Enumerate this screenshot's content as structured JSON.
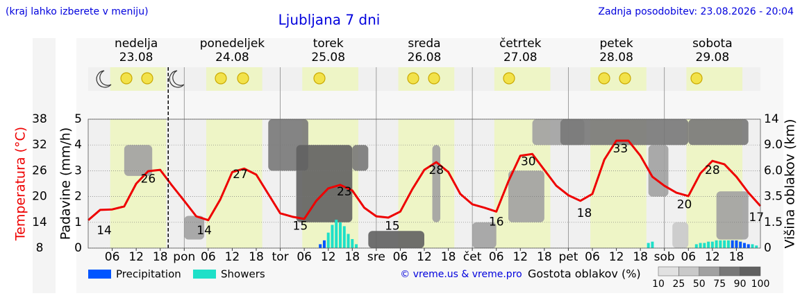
{
  "header": {
    "note": "(kraj lahko izberete v meniju)",
    "updated": "Zadnja posodobitev: 23.08.2026 - 20:04"
  },
  "chart_data": {
    "type": "meteogram",
    "title": "Ljubljana 7 dni",
    "days": [
      {
        "name": "nedelja",
        "date": "23.08",
        "weekend": true
      },
      {
        "name": "ponedeljek",
        "date": "24.08",
        "weekend": false
      },
      {
        "name": "torek",
        "date": "25.08",
        "weekend": false
      },
      {
        "name": "sreda",
        "date": "26.08",
        "weekend": false
      },
      {
        "name": "četrtek",
        "date": "27.08",
        "weekend": false
      },
      {
        "name": "petek",
        "date": "28.08",
        "weekend": false
      },
      {
        "name": "sobota",
        "date": "29.08",
        "weekend": true
      }
    ],
    "daylight": [
      5.5,
      19.5
    ],
    "now": 20,
    "xlim": [
      0,
      168
    ],
    "xticks": [
      {
        "value": 6,
        "label": "06"
      },
      {
        "value": 12,
        "label": "12"
      },
      {
        "value": 18,
        "label": "18"
      },
      {
        "value": 24,
        "label": "pon"
      },
      {
        "value": 30,
        "label": "06"
      },
      {
        "value": 36,
        "label": "12"
      },
      {
        "value": 42,
        "label": "18"
      },
      {
        "value": 48,
        "label": "tor"
      },
      {
        "value": 54,
        "label": "06"
      },
      {
        "value": 60,
        "label": "12"
      },
      {
        "value": 66,
        "label": "18"
      },
      {
        "value": 72,
        "label": "sre"
      },
      {
        "value": 78,
        "label": "06"
      },
      {
        "value": 84,
        "label": "12"
      },
      {
        "value": 90,
        "label": "18"
      },
      {
        "value": 96,
        "label": "čet"
      },
      {
        "value": 102,
        "label": "06"
      },
      {
        "value": 108,
        "label": "12"
      },
      {
        "value": 114,
        "label": "18"
      },
      {
        "value": 120,
        "label": "pet"
      },
      {
        "value": 126,
        "label": "06"
      },
      {
        "value": 132,
        "label": "12"
      },
      {
        "value": 138,
        "label": "18"
      },
      {
        "value": 144,
        "label": "sob"
      },
      {
        "value": 150,
        "label": "06"
      },
      {
        "value": 156,
        "label": "12"
      },
      {
        "value": 162,
        "label": "18"
      }
    ],
    "ylabel": "Padavine (mm/h)",
    "ylim": [
      0,
      5
    ],
    "yticks": [
      0,
      1,
      2,
      3,
      4,
      5
    ],
    "grid": true,
    "y2label": "Višina oblakov (km)",
    "y2ticks": [
      0,
      1.5,
      3.5,
      {
        "value": 6,
        "label": "6.0"
      },
      {
        "value": 9,
        "label": "9.0"
      },
      14
    ],
    "temperature": {
      "label": "Temperatura (°C)",
      "color": "#ee0000",
      "ylim": [
        8,
        38
      ],
      "yticks": [
        8,
        14,
        20,
        26,
        32,
        38
      ],
      "x": [
        0,
        3,
        6,
        9,
        12,
        15,
        18,
        21,
        24,
        27,
        30,
        33,
        36,
        39,
        42,
        45,
        48,
        51,
        54,
        57,
        60,
        63,
        66,
        69,
        72,
        75,
        78,
        81,
        84,
        87,
        90,
        93,
        96,
        99,
        102,
        105,
        108,
        111,
        114,
        117,
        120,
        123,
        126,
        129,
        132,
        135,
        138,
        141,
        144,
        147,
        150,
        153,
        156,
        159,
        162,
        165,
        168
      ],
      "values": [
        14.5,
        16.9,
        17.0,
        17.7,
        23.0,
        25.9,
        26.2,
        22.5,
        19.0,
        15.4,
        14.5,
        19.3,
        25.7,
        26.5,
        25.1,
        20.6,
        16.1,
        15.3,
        14.8,
        19.0,
        21.9,
        22.7,
        21.4,
        17.4,
        15.4,
        15.1,
        16.5,
        21.7,
        26.2,
        28.0,
        25.7,
        20.6,
        18.2,
        17.4,
        16.5,
        23.5,
        29.5,
        29.9,
        26.2,
        22.5,
        20.3,
        19.0,
        20.6,
        28.6,
        33.0,
        33.0,
        29.5,
        24.6,
        22.5,
        20.9,
        20.1,
        25.4,
        28.3,
        27.5,
        24.6,
        20.9,
        17.8
      ],
      "labels": {
        "x": [
          4,
          15,
          29,
          38,
          53,
          64,
          76,
          87,
          102,
          110,
          124,
          133,
          149,
          156,
          167
        ],
        "values": [
          14,
          26,
          14,
          27,
          15,
          23,
          15,
          28,
          16,
          30,
          18,
          33,
          20,
          28,
          17
        ]
      }
    },
    "series": [
      {
        "name": "Precipitation",
        "color": "#0055ff",
        "x": [
          58,
          59,
          161,
          162,
          163,
          164,
          165
        ],
        "values": [
          0.15,
          0.3,
          0.3,
          0.3,
          0.25,
          0.2,
          0.15
        ]
      },
      {
        "name": "Showers",
        "color": "#1ee0c8",
        "x": [
          60,
          61,
          62,
          63,
          64,
          65,
          66,
          67,
          140,
          141,
          152,
          153,
          154,
          155,
          156,
          157,
          158,
          159,
          160,
          166,
          167
        ],
        "values": [
          0.6,
          0.9,
          1.1,
          1.0,
          0.85,
          0.55,
          0.35,
          0.15,
          0.2,
          0.25,
          0.15,
          0.2,
          0.2,
          0.25,
          0.25,
          0.3,
          0.3,
          0.3,
          0.3,
          0.15,
          0.1
        ]
      }
    ],
    "clouds": {
      "label": "Gostota oblakov (%)",
      "scale": [
        10,
        25,
        50,
        75,
        90,
        100
      ],
      "blobs": [
        {
          "x": [
            9,
            16
          ],
          "height": [
            5.5,
            9
          ],
          "density": 50
        },
        {
          "x": [
            24,
            29
          ],
          "height": [
            0.5,
            2
          ],
          "density": 50
        },
        {
          "x": [
            45,
            55
          ],
          "height": [
            6,
            14
          ],
          "density": 75
        },
        {
          "x": [
            52,
            66
          ],
          "height": [
            1.5,
            9
          ],
          "density": 90
        },
        {
          "x": [
            66,
            70
          ],
          "height": [
            6,
            9
          ],
          "density": 75
        },
        {
          "x": [
            70,
            84
          ],
          "height": [
            0,
            1
          ],
          "density": 90
        },
        {
          "x": [
            86,
            88
          ],
          "height": [
            1.5,
            9
          ],
          "density": 50
        },
        {
          "x": [
            96,
            102
          ],
          "height": [
            0,
            1.5
          ],
          "density": 50
        },
        {
          "x": [
            105,
            114
          ],
          "height": [
            1.5,
            6
          ],
          "density": 50
        },
        {
          "x": [
            111,
            124
          ],
          "height": [
            9,
            14
          ],
          "density": 50
        },
        {
          "x": [
            118,
            150
          ],
          "height": [
            9,
            14
          ],
          "density": 75
        },
        {
          "x": [
            140,
            145
          ],
          "height": [
            3.5,
            9
          ],
          "density": 50
        },
        {
          "x": [
            146,
            150
          ],
          "height": [
            0,
            1.5
          ],
          "density": 25
        },
        {
          "x": [
            150,
            165
          ],
          "height": [
            9,
            14
          ],
          "density": 75
        },
        {
          "x": [
            157,
            165
          ],
          "height": [
            0.5,
            4
          ],
          "density": 50
        }
      ]
    },
    "credit": "© vreme.us & vreme.pro"
  }
}
